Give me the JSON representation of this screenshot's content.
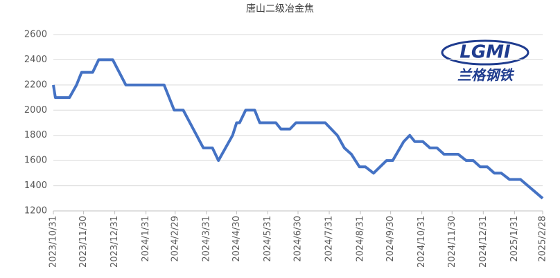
{
  "chart_data": {
    "type": "line",
    "title": "唐山二级冶金焦",
    "logo": {
      "mark": "LGMI",
      "name": "兰格钢铁"
    },
    "color": "#4472c4",
    "grid": true,
    "x": [
      "2023/10/31",
      "2023/11/2",
      "2023/11/16",
      "2023/11/23",
      "2023/11/28",
      "2023/12/9",
      "2023/12/15",
      "2023/12/29",
      "2024/1/11",
      "2024/2/18",
      "2024/2/23",
      "2024/2/28",
      "2024/3/8",
      "2024/3/28",
      "2024/4/6",
      "2024/4/12",
      "2024/4/26",
      "2024/4/30",
      "2024/5/3",
      "2024/5/9",
      "2024/5/18",
      "2024/5/23",
      "2024/6/8",
      "2024/6/13",
      "2024/6/22",
      "2024/6/28",
      "2024/7/27",
      "2024/8/8",
      "2024/8/15",
      "2024/8/22",
      "2024/8/30",
      "2024/9/5",
      "2024/9/13",
      "2024/9/26",
      "2024/10/2",
      "2024/10/13",
      "2024/10/19",
      "2024/10/24",
      "2024/11/1",
      "2024/11/8",
      "2024/11/15",
      "2024/11/22",
      "2024/12/6",
      "2024/12/14",
      "2024/12/21",
      "2024/12/28",
      "2025/1/4",
      "2025/1/11",
      "2025/1/18",
      "2025/1/26",
      "2025/2/6",
      "2025/2/28"
    ],
    "values": [
      2200,
      2100,
      2100,
      2200,
      2300,
      2300,
      2400,
      2400,
      2200,
      2200,
      2100,
      2000,
      2000,
      1700,
      1700,
      1600,
      1800,
      1900,
      1900,
      2000,
      2000,
      1900,
      1900,
      1850,
      1850,
      1900,
      1900,
      1800,
      1700,
      1650,
      1550,
      1550,
      1500,
      1600,
      1600,
      1750,
      1800,
      1750,
      1750,
      1700,
      1700,
      1650,
      1650,
      1600,
      1600,
      1550,
      1550,
      1500,
      1500,
      1450,
      1450,
      1300
    ],
    "xlim": [
      "2023/10/31",
      "2025/2/28"
    ],
    "xticks": [
      "2023/10/31",
      "2023/11/30",
      "2023/12/31",
      "2024/1/31",
      "2024/2/29",
      "2024/3/31",
      "2024/4/30",
      "2024/5/31",
      "2024/6/30",
      "2024/7/31",
      "2024/8/31",
      "2024/9/30",
      "2024/10/31",
      "2024/11/30",
      "2024/12/31",
      "2025/1/31",
      "2025/2/28"
    ],
    "ylim": [
      1200,
      2600
    ],
    "yticks": [
      1200,
      1400,
      1600,
      1800,
      2000,
      2200,
      2400,
      2600
    ]
  }
}
